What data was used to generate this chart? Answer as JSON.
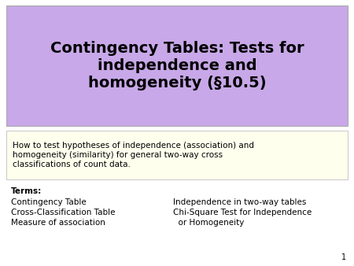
{
  "title": "Contingency Tables: Tests for\nindependence and\nhomogeneity (§10.5)",
  "title_bg": "#c8a8e8",
  "title_fontsize": 14,
  "title_color": "#000000",
  "subtitle_box_text": "How to test hypotheses of independence (association) and\nhomogeneity (similarity) for general two-way cross\nclassifications of count data.",
  "subtitle_bg": "#ffffee",
  "subtitle_fontsize": 7.5,
  "terms_label": "Terms:",
  "terms_left": [
    "Contingency Table",
    "Cross-Classification Table",
    "Measure of association"
  ],
  "terms_right": [
    "Independence in two-way tables",
    "Chi-Square Test for Independence\n  or Homogeneity"
  ],
  "bg_color": "#ffffff",
  "outer_bg": "#e8e8e8",
  "slide_number": "1",
  "body_fontsize": 7.5
}
